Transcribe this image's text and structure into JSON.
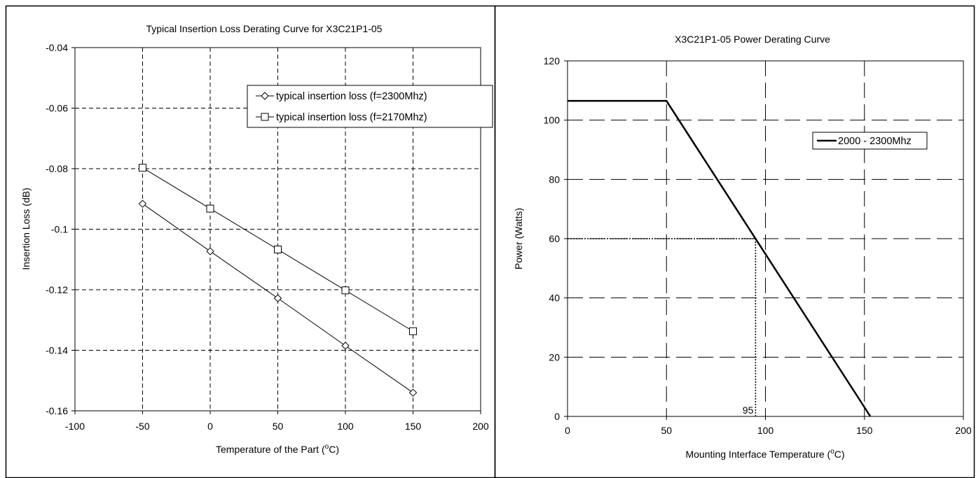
{
  "chart_data": [
    {
      "type": "line",
      "title": "Typical Insertion Loss Derating Curve for X3C21P1-05",
      "xlabel": "Temperature of the Part (oC)",
      "xlabel_parts": {
        "pre": "Temperature of the Part (",
        "sup": "o",
        "post": "C)"
      },
      "ylabel": "Insertion Loss (dB)",
      "xlim": [
        -100,
        200
      ],
      "ylim": [
        -0.16,
        -0.04
      ],
      "x_ticks": [
        "-100",
        "-50",
        "0",
        "50",
        "100",
        "150",
        "200"
      ],
      "y_ticks": [
        "-0.04",
        "-0.06",
        "-0.08",
        "-0.1",
        "-0.12",
        "-0.14",
        "-0.16"
      ],
      "grid": true,
      "legend_position": "top-right",
      "series": [
        {
          "name": "typical insertion loss (f=2300Mhz)",
          "marker": "diamond",
          "x": [
            -50,
            0,
            50,
            100,
            150
          ],
          "y": [
            -0.0916,
            -0.1073,
            -0.1228,
            -0.1385,
            -0.154
          ]
        },
        {
          "name": "typical insertion loss (f=2170Mhz)",
          "marker": "square",
          "x": [
            -50,
            0,
            50,
            100,
            150
          ],
          "y": [
            -0.0797,
            -0.0932,
            -0.1067,
            -0.1202,
            -0.1337
          ]
        }
      ]
    },
    {
      "type": "line",
      "title": "X3C21P1-05 Power Derating Curve",
      "xlabel": "Mounting Interface Temperature (oC)",
      "xlabel_parts": {
        "pre": "Mounting Interface Temperature (",
        "sup": "o",
        "post": "C)"
      },
      "ylabel": "Power (Watts)",
      "xlim": [
        0,
        200
      ],
      "ylim": [
        0,
        120
      ],
      "x_ticks": [
        "0",
        "50",
        "100",
        "150",
        "200"
      ],
      "y_ticks": [
        "120",
        "100",
        "80",
        "60",
        "40",
        "20",
        "0"
      ],
      "grid": true,
      "legend_position": "right",
      "series": [
        {
          "name": "2000 - 2300Mhz",
          "marker": "none",
          "x": [
            0,
            50,
            153
          ],
          "y": [
            106.5,
            106.5,
            0
          ]
        }
      ],
      "annotation": {
        "label": "95",
        "x": 95,
        "y": 60
      }
    }
  ]
}
